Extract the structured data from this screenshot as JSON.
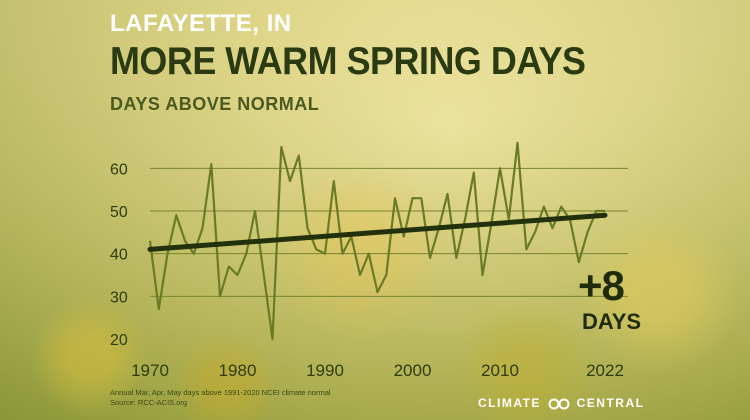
{
  "header": {
    "location": "LAFAYETTE, IN",
    "title": "MORE WARM SPRING DAYS",
    "subtitle": "DAYS ABOVE NORMAL"
  },
  "annotation": {
    "change": "+8",
    "unit": "DAYS"
  },
  "footer": {
    "note": "Annual Mar, Apr, May days above 1991-2020 NCEI climate normal",
    "source": "Source: RCC-ACIS.org",
    "brand_left": "CLIMATE",
    "brand_right": "CENTRAL"
  },
  "colors": {
    "series": "#6b7a25",
    "trend": "#22300c",
    "grid": "#7a8530"
  },
  "chart_data": {
    "type": "line",
    "title": "MORE WARM SPRING DAYS",
    "subtitle": "DAYS ABOVE NORMAL",
    "xlabel": "",
    "ylabel": "",
    "xlim": [
      1970,
      2022
    ],
    "ylim": [
      20,
      65
    ],
    "yticks": [
      20,
      30,
      40,
      50,
      60
    ],
    "xticks": [
      "1970",
      "1980",
      "1990",
      "2000",
      "2010",
      "2022"
    ],
    "grid": true,
    "series": [
      {
        "values": [
          [
            1970,
            43
          ],
          [
            1971,
            27
          ],
          [
            1972,
            40
          ],
          [
            1973,
            49
          ],
          [
            1974,
            43
          ],
          [
            1975,
            40
          ],
          [
            1976,
            46
          ],
          [
            1977,
            61
          ],
          [
            1978,
            30
          ],
          [
            1979,
            37
          ],
          [
            1980,
            35
          ],
          [
            1981,
            40
          ],
          [
            1982,
            50
          ],
          [
            1983,
            35
          ],
          [
            1984,
            20
          ],
          [
            1985,
            65
          ],
          [
            1986,
            57
          ],
          [
            1987,
            63
          ],
          [
            1988,
            46
          ],
          [
            1989,
            41
          ],
          [
            1990,
            40
          ],
          [
            1991,
            57
          ],
          [
            1992,
            40
          ],
          [
            1993,
            44
          ],
          [
            1994,
            35
          ],
          [
            1995,
            40
          ],
          [
            1996,
            31
          ],
          [
            1997,
            35
          ],
          [
            1998,
            53
          ],
          [
            1999,
            44
          ],
          [
            2000,
            53
          ],
          [
            2001,
            53
          ],
          [
            2002,
            39
          ],
          [
            2003,
            46
          ],
          [
            2004,
            54
          ],
          [
            2005,
            39
          ],
          [
            2006,
            48
          ],
          [
            2007,
            59
          ],
          [
            2008,
            35
          ],
          [
            2009,
            47
          ],
          [
            2010,
            60
          ],
          [
            2011,
            48
          ],
          [
            2012,
            66
          ],
          [
            2013,
            41
          ],
          [
            2014,
            45
          ],
          [
            2015,
            51
          ],
          [
            2016,
            46
          ],
          [
            2017,
            51
          ],
          [
            2018,
            48
          ],
          [
            2019,
            38
          ],
          [
            2020,
            45
          ],
          [
            2021,
            50
          ],
          [
            2022,
            50
          ]
        ]
      }
    ],
    "trend": {
      "start": [
        1970,
        41
      ],
      "end": [
        2022,
        49
      ]
    }
  }
}
